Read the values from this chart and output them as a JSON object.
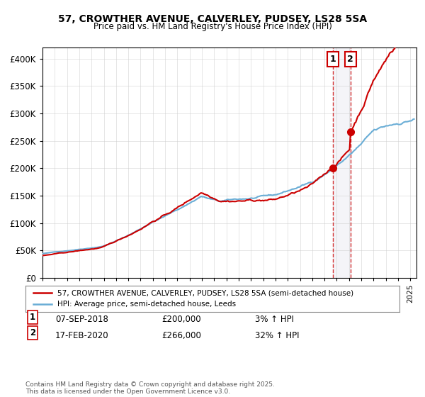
{
  "title1": "57, CROWTHER AVENUE, CALVERLEY, PUDSEY, LS28 5SA",
  "title2": "Price paid vs. HM Land Registry's House Price Index (HPI)",
  "legend_line1": "57, CROWTHER AVENUE, CALVERLEY, PUDSEY, LS28 5SA (semi-detached house)",
  "legend_line2": "HPI: Average price, semi-detached house, Leeds",
  "footer": "Contains HM Land Registry data © Crown copyright and database right 2025.\nThis data is licensed under the Open Government Licence v3.0.",
  "hpi_color": "#6baed6",
  "price_color": "#cc0000",
  "marker1_date": 2018.67,
  "marker1_price": 200000,
  "marker1_label": "1",
  "marker2_date": 2020.12,
  "marker2_price": 266000,
  "marker2_label": "2",
  "annotation1": "1    07-SEP-2018         £200,000         3% ↑ HPI",
  "annotation2": "2    17-FEB-2020         £266,000         32% ↑ HPI",
  "xlim": [
    1995,
    2025.5
  ],
  "ylim": [
    0,
    420000
  ],
  "yticks": [
    0,
    50000,
    100000,
    150000,
    200000,
    250000,
    300000,
    350000,
    400000
  ],
  "ytick_labels": [
    "£0",
    "£50K",
    "£100K",
    "£150K",
    "£200K",
    "£250K",
    "£300K",
    "£350K",
    "£400K"
  ],
  "background_color": "#f5f5f5",
  "shade_start": 2018.67,
  "shade_end": 2020.12
}
